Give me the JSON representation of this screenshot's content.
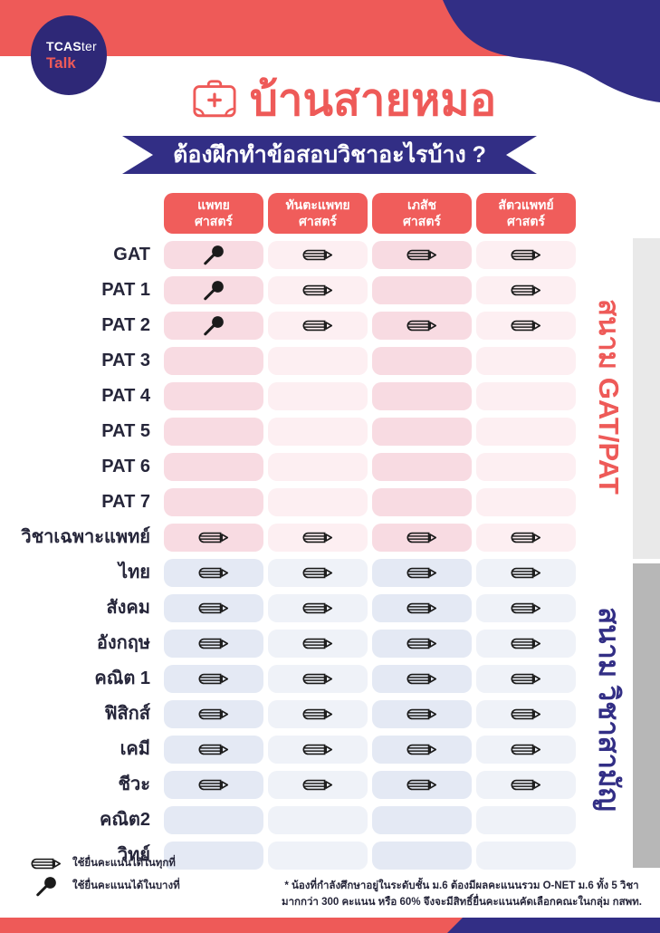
{
  "colors": {
    "coral": "#EE5A58",
    "navy": "#322E85",
    "navy_dark": "#2E2877",
    "header_red": "#F05D5B",
    "pink_dark": "#F8DBE2",
    "pink_light": "#FDEFF2",
    "blue_dark": "#E4E9F4",
    "blue_light": "#EFF2F8",
    "bar_light": "#E9E9E9",
    "bar_dark": "#B7B7B7",
    "ink": "#26263A",
    "icon_ink": "#1B1B1B"
  },
  "brand": {
    "name_bold": "TCAS",
    "name_rest": "ter",
    "tagline": "Talk"
  },
  "header": {
    "title": "บ้านสายหมอ",
    "title_icon": "first-aid-kit-icon",
    "subtitle": "ต้องฝึกทำข้อสอบวิชาอะไรบ้าง ?"
  },
  "table": {
    "columns": [
      {
        "line1": "แพทย",
        "line2": "ศาสตร์"
      },
      {
        "line1": "ทันตะแพทย",
        "line2": "ศาสตร์"
      },
      {
        "line1": "เภสัช",
        "line2": "ศาสตร์"
      },
      {
        "line1": "สัตวแพทย์",
        "line2": "ศาสตร์"
      }
    ],
    "icon_meanings": {
      "pencil": "ใช้ยื่นคะแนนได้ในทุกที่",
      "pin": "ใช้ยื่นคะแนนได้ในบางที่"
    },
    "rows": [
      {
        "label": "GAT",
        "section": "gatpat",
        "cells": [
          "pin",
          "pencil",
          "pencil",
          "pencil"
        ]
      },
      {
        "label": "PAT 1",
        "section": "gatpat",
        "cells": [
          "pin",
          "pencil",
          "",
          "pencil"
        ]
      },
      {
        "label": "PAT 2",
        "section": "gatpat",
        "cells": [
          "pin",
          "pencil",
          "pencil",
          "pencil"
        ]
      },
      {
        "label": "PAT 3",
        "section": "gatpat",
        "cells": [
          "",
          "",
          "",
          ""
        ]
      },
      {
        "label": "PAT 4",
        "section": "gatpat",
        "cells": [
          "",
          "",
          "",
          ""
        ]
      },
      {
        "label": "PAT 5",
        "section": "gatpat",
        "cells": [
          "",
          "",
          "",
          ""
        ]
      },
      {
        "label": "PAT 6",
        "section": "gatpat",
        "cells": [
          "",
          "",
          "",
          ""
        ]
      },
      {
        "label": "PAT 7",
        "section": "gatpat",
        "cells": [
          "",
          "",
          "",
          ""
        ]
      },
      {
        "label": "วิชาเฉพาะแพทย์",
        "section": "gatpat",
        "cells": [
          "pencil",
          "pencil",
          "pencil",
          "pencil"
        ]
      },
      {
        "label": "ไทย",
        "section": "common",
        "cells": [
          "pencil",
          "pencil",
          "pencil",
          "pencil"
        ]
      },
      {
        "label": "สังคม",
        "section": "common",
        "cells": [
          "pencil",
          "pencil",
          "pencil",
          "pencil"
        ]
      },
      {
        "label": "อังกฤษ",
        "section": "common",
        "cells": [
          "pencil",
          "pencil",
          "pencil",
          "pencil"
        ]
      },
      {
        "label": "คณิต 1",
        "section": "common",
        "cells": [
          "pencil",
          "pencil",
          "pencil",
          "pencil"
        ]
      },
      {
        "label": "ฟิสิกส์",
        "section": "common",
        "cells": [
          "pencil",
          "pencil",
          "pencil",
          "pencil"
        ]
      },
      {
        "label": "เคมี",
        "section": "common",
        "cells": [
          "pencil",
          "pencil",
          "pencil",
          "pencil"
        ]
      },
      {
        "label": "ชีวะ",
        "section": "common",
        "cells": [
          "pencil",
          "pencil",
          "pencil",
          "pencil"
        ]
      },
      {
        "label": "คณิต2",
        "section": "common",
        "cells": [
          "",
          "",
          "",
          ""
        ]
      },
      {
        "label": "วิทย์",
        "section": "common",
        "cells": [
          "",
          "",
          "",
          ""
        ]
      }
    ]
  },
  "sections": {
    "gatpat_label": "สนาม GAT/PAT",
    "common_label": "สนาม วิชาสามัญ"
  },
  "legend": {
    "items": [
      {
        "icon": "pencil",
        "text": "ใช้ยื่นคะแนนได้ในทุกที่"
      },
      {
        "icon": "pin",
        "text": "ใช้ยื่นคะแนนได้ในบางที่"
      }
    ]
  },
  "footnote": {
    "line1": "* น้องที่กำลังศึกษาอยู่ในระดับชั้น ม.6 ต้องมีผลคะแนนรวม O-NET ม.6 ทั้ง 5 วิชา",
    "line2": "มากกว่า 300 คะแนน หรือ 60% จึงจะมีสิทธิ์ยื่นคะแนนคัดเลือกคณะในกลุ่ม กสพท."
  }
}
